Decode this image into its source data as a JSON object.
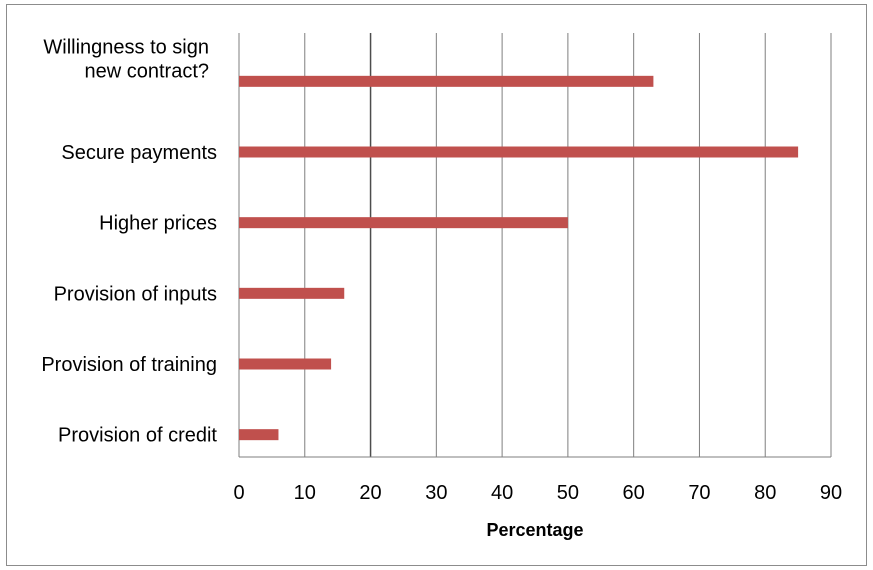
{
  "chart_data": {
    "type": "bar",
    "orientation": "horizontal",
    "categories": [
      [
        "Willingness to sign",
        "new contract?"
      ],
      [
        "Secure payments"
      ],
      [
        "Higher prices"
      ],
      [
        "Provision of inputs"
      ],
      [
        "Provision of training"
      ],
      [
        "Provision of credit"
      ]
    ],
    "values": [
      63,
      85,
      50,
      16,
      14,
      6
    ],
    "xlabel": "Percentage",
    "xlim": [
      0,
      90
    ],
    "xticks": [
      "0",
      "10",
      "20",
      "30",
      "40",
      "50",
      "60",
      "70",
      "80",
      "90"
    ],
    "grid": "vertical",
    "legend": "none",
    "bar_color": "#c0504d",
    "grid_color": "#7f7f7f"
  }
}
